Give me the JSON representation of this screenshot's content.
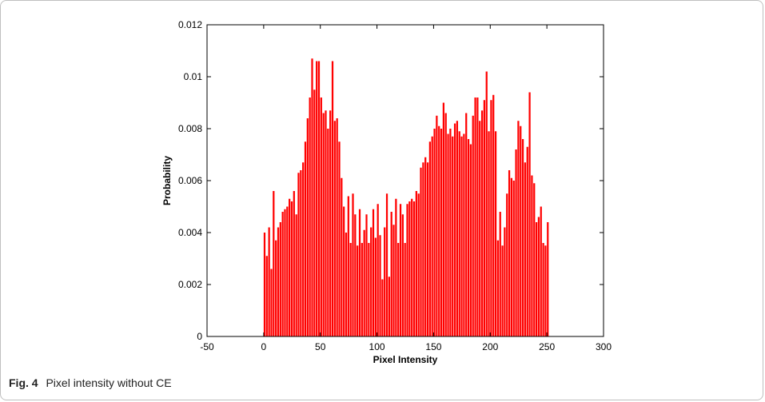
{
  "caption": {
    "label": "Fig. 4",
    "text": "Pixel intensity without CE"
  },
  "colors": {
    "bar": "#ff0000",
    "axis": "#000000"
  },
  "chart_data": {
    "type": "bar",
    "title": "",
    "xlabel": "Pixel Intensity",
    "ylabel": "Probability",
    "xlim": [
      -50,
      300
    ],
    "ylim": [
      0,
      0.012
    ],
    "x_ticks": [
      -50,
      0,
      50,
      100,
      150,
      200,
      250,
      300
    ],
    "x_tick_labels": [
      "-50",
      "0",
      "50",
      "100",
      "150",
      "200",
      "250",
      "300"
    ],
    "y_ticks": [
      0,
      0.002,
      0.004,
      0.006,
      0.008,
      0.01,
      0.012
    ],
    "y_tick_labels": [
      "0",
      "0.002",
      "0.004",
      "0.006",
      "0.008",
      "0.01",
      "0.012"
    ],
    "grid": false,
    "bin_start": 0,
    "bin_width": 2,
    "values": [
      0.004,
      0.0031,
      0.0042,
      0.0026,
      0.0056,
      0.0037,
      0.0042,
      0.0044,
      0.0048,
      0.0049,
      0.005,
      0.0053,
      0.0052,
      0.0056,
      0.0047,
      0.0063,
      0.0064,
      0.0067,
      0.0075,
      0.0084,
      0.0092,
      0.0107,
      0.0095,
      0.0106,
      0.0106,
      0.0092,
      0.0086,
      0.0087,
      0.008,
      0.0087,
      0.0106,
      0.0083,
      0.0084,
      0.0075,
      0.0061,
      0.005,
      0.004,
      0.0054,
      0.0036,
      0.0055,
      0.0047,
      0.0035,
      0.0049,
      0.0036,
      0.0041,
      0.0047,
      0.0036,
      0.0042,
      0.0049,
      0.0038,
      0.0051,
      0.0039,
      0.0022,
      0.0042,
      0.0055,
      0.0023,
      0.0048,
      0.0043,
      0.0053,
      0.0036,
      0.0051,
      0.0047,
      0.0036,
      0.0051,
      0.0052,
      0.0053,
      0.0052,
      0.0056,
      0.0055,
      0.0065,
      0.0067,
      0.0069,
      0.0067,
      0.0075,
      0.0077,
      0.008,
      0.0085,
      0.0081,
      0.008,
      0.009,
      0.0086,
      0.0078,
      0.008,
      0.0077,
      0.0082,
      0.0083,
      0.0079,
      0.0077,
      0.0078,
      0.0086,
      0.0076,
      0.0074,
      0.0085,
      0.0092,
      0.0092,
      0.0083,
      0.0087,
      0.0091,
      0.0102,
      0.0079,
      0.0091,
      0.0093,
      0.0079,
      0.0037,
      0.0048,
      0.0035,
      0.0042,
      0.0055,
      0.0064,
      0.0061,
      0.006,
      0.0072,
      0.0083,
      0.0081,
      0.0076,
      0.0067,
      0.0073,
      0.0094,
      0.0062,
      0.0059,
      0.0044,
      0.0046,
      0.005,
      0.0036,
      0.0035,
      0.0044
    ]
  }
}
